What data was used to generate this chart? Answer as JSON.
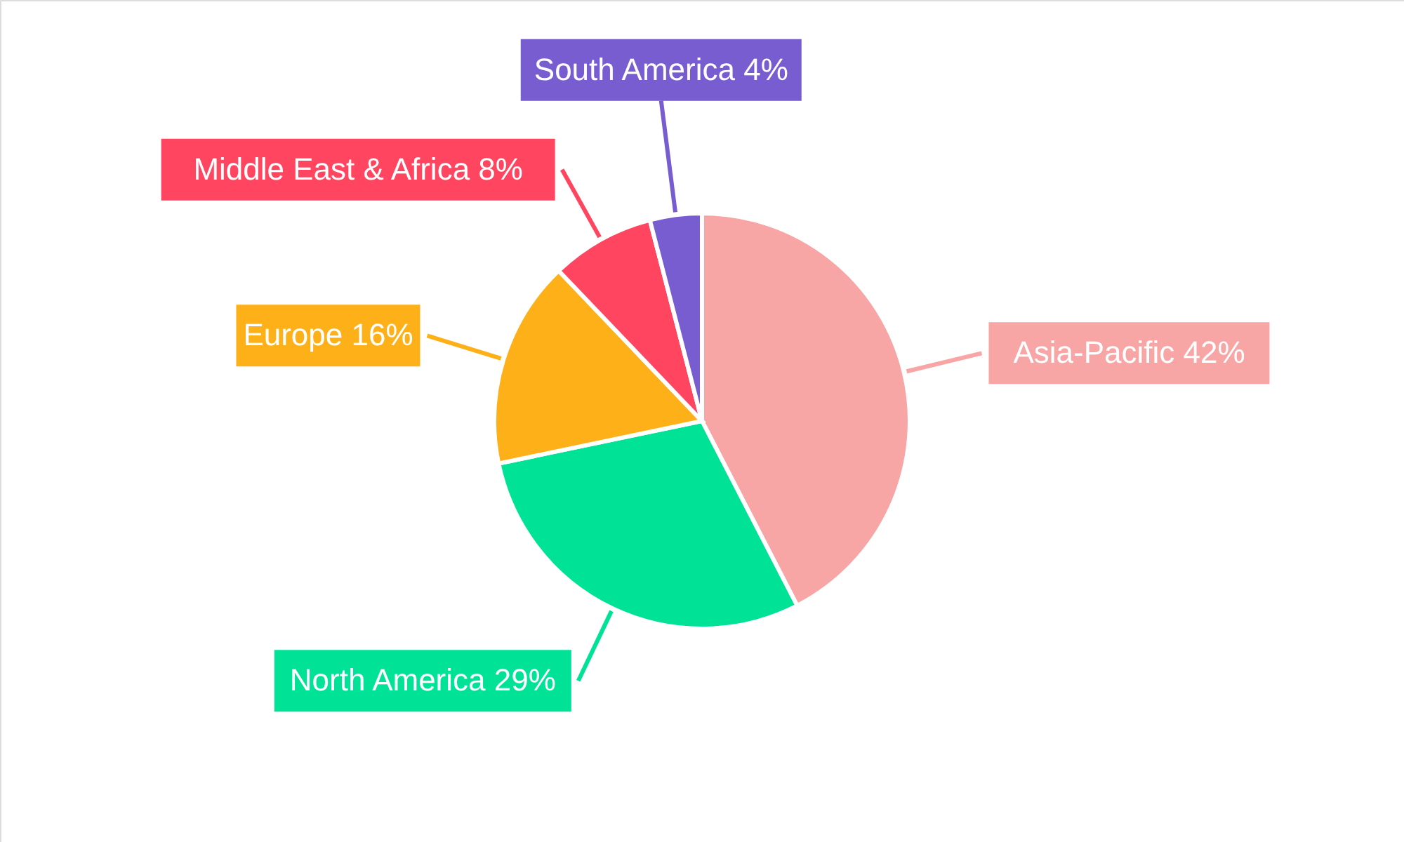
{
  "chart_data": {
    "type": "pie",
    "categories": [
      "Asia-Pacific",
      "North America",
      "Europe",
      "Middle East & Africa",
      "South America"
    ],
    "values": [
      42,
      29,
      16,
      8,
      4
    ],
    "value_labels": [
      "42%",
      "29%",
      "16%",
      "8%",
      "4%"
    ],
    "colors": [
      "#f8a5a6",
      "#00e396",
      "#feb019",
      "#ff4560",
      "#775dd0"
    ]
  }
}
